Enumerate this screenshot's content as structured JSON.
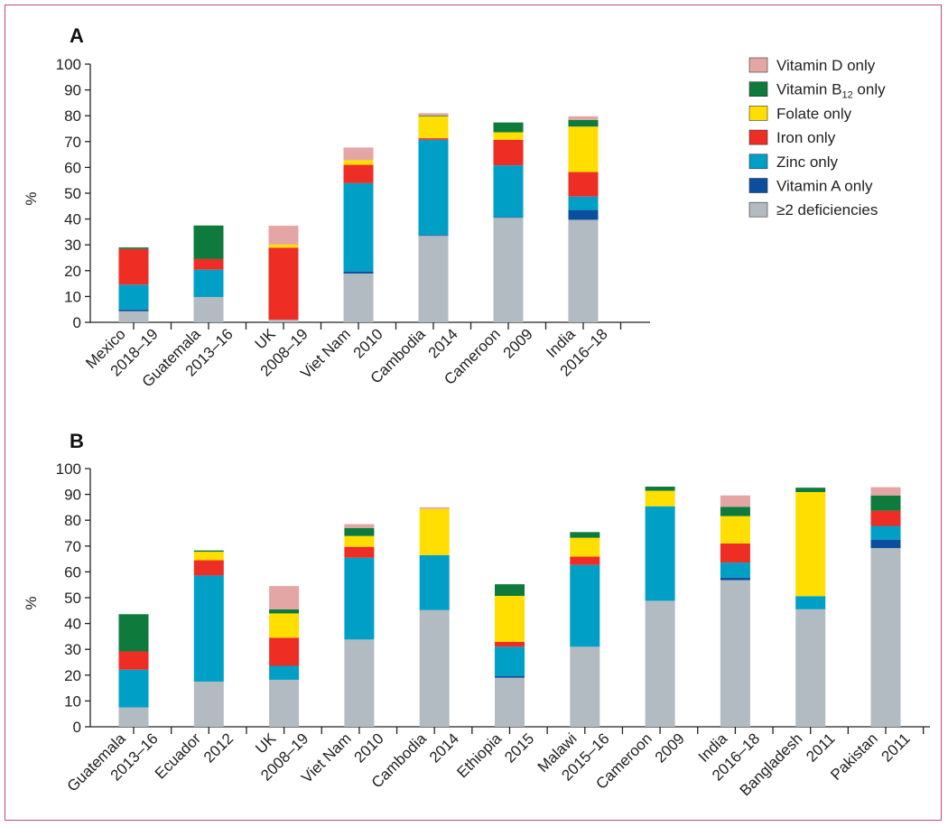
{
  "legend": [
    {
      "label": "Vitamin D only",
      "base": "Vitamin D only",
      "sub": "",
      "rest": "",
      "color": "#e4a6a4"
    },
    {
      "label": "Vitamin B12 only",
      "base": "Vitamin B",
      "sub": "12",
      "rest": " only",
      "color": "#0e7a3c"
    },
    {
      "label": "Folate only",
      "base": "Folate only",
      "sub": "",
      "rest": "",
      "color": "#ffde00"
    },
    {
      "label": "Iron only",
      "base": "Iron only",
      "sub": "",
      "rest": "",
      "color": "#ee2d24"
    },
    {
      "label": "Zinc only",
      "base": "Zinc only",
      "sub": "",
      "rest": "",
      "color": "#00a0c6"
    },
    {
      "label": "Vitamin A only",
      "base": "Vitamin A only",
      "sub": "",
      "rest": "",
      "color": "#0a4f9e"
    },
    {
      "label": "≥2 deficiencies",
      "base": "≥2 deficiencies",
      "sub": "",
      "rest": "",
      "color": "#b3bbc2"
    }
  ],
  "chart_data": [
    {
      "type": "bar",
      "stacked": true,
      "panel": "A",
      "ylabel": "%",
      "ylim": [
        0,
        100
      ],
      "yticks": [
        0,
        10,
        20,
        30,
        40,
        50,
        60,
        70,
        80,
        90,
        100
      ],
      "categories": [
        {
          "country": "Mexico",
          "year": "2018–19"
        },
        {
          "country": "Guatemala",
          "year": "2013–16"
        },
        {
          "country": "UK",
          "year": "2008–19"
        },
        {
          "country": "Viet Nam",
          "year": "2010"
        },
        {
          "country": "Cambodia",
          "year": "2014"
        },
        {
          "country": "Cameroon",
          "year": "2009"
        },
        {
          "country": "India",
          "year": "2016–18"
        }
      ],
      "series": [
        {
          "name": "≥2 deficiencies",
          "values": [
            4.3,
            9.8,
            1.0,
            18.9,
            33.5,
            40.5,
            39.7
          ]
        },
        {
          "name": "Vitamin A only",
          "values": [
            0.7,
            0,
            0,
            0.8,
            0.3,
            0.2,
            3.8
          ]
        },
        {
          "name": "Zinc only",
          "values": [
            9.6,
            10.6,
            0,
            34.2,
            36.9,
            20.1,
            5.2
          ]
        },
        {
          "name": "Iron only",
          "values": [
            13.8,
            4.1,
            27.9,
            7.1,
            0.6,
            9.9,
            9.5
          ]
        },
        {
          "name": "Folate only",
          "values": [
            0,
            0,
            1.2,
            1.8,
            8.5,
            2.9,
            17.6
          ]
        },
        {
          "name": "Vitamin B12 only",
          "values": [
            0.6,
            13.0,
            0,
            0,
            0.3,
            3.8,
            2.6
          ]
        },
        {
          "name": "Vitamin D only",
          "values": [
            0,
            0,
            7.3,
            4.9,
            0.9,
            0,
            1.4
          ]
        }
      ]
    },
    {
      "type": "bar",
      "stacked": true,
      "panel": "B",
      "ylabel": "%",
      "ylim": [
        0,
        100
      ],
      "yticks": [
        0,
        10,
        20,
        30,
        40,
        50,
        60,
        70,
        80,
        90,
        100
      ],
      "categories": [
        {
          "country": "Guatemala",
          "year": "2013–16"
        },
        {
          "country": "Ecuador",
          "year": "2012"
        },
        {
          "country": "UK",
          "year": "2008–19"
        },
        {
          "country": "Viet Nam",
          "year": "2010"
        },
        {
          "country": "Cambodia",
          "year": "2014"
        },
        {
          "country": "Ethiopia",
          "year": "2015"
        },
        {
          "country": "Malawi",
          "year": "2015–16"
        },
        {
          "country": "Cameroon",
          "year": "2009"
        },
        {
          "country": "India",
          "year": "2016–18"
        },
        {
          "country": "Bangladesh",
          "year": "2011"
        },
        {
          "country": "Pakistan",
          "year": "2011"
        }
      ],
      "series": [
        {
          "name": "≥2 deficiencies",
          "values": [
            7.5,
            17.5,
            18.2,
            33.8,
            45.2,
            19.0,
            31.0,
            48.8,
            56.8,
            45.5,
            69.2
          ]
        },
        {
          "name": "Vitamin A only",
          "values": [
            0,
            0,
            0,
            0,
            0,
            0.7,
            0,
            0,
            1.0,
            0,
            3.3
          ]
        },
        {
          "name": "Zinc only",
          "values": [
            14.6,
            41.1,
            5.4,
            31.7,
            21.3,
            11.3,
            31.7,
            36.6,
            5.8,
            5.1,
            5.3
          ]
        },
        {
          "name": "Iron only",
          "values": [
            7.1,
            5.9,
            10.9,
            4.2,
            0,
            1.9,
            3.2,
            0,
            7.4,
            0,
            5.9
          ]
        },
        {
          "name": "Folate only",
          "values": [
            0,
            3.3,
            9.4,
            4.2,
            17.9,
            17.8,
            7.3,
            6.0,
            10.6,
            40.3,
            0
          ]
        },
        {
          "name": "Vitamin B12 only",
          "values": [
            14.4,
            0.5,
            1.6,
            3.1,
            0,
            4.5,
            2.2,
            1.6,
            3.6,
            1.7,
            5.9
          ]
        },
        {
          "name": "Vitamin D only",
          "values": [
            0,
            0,
            9.0,
            1.5,
            0.6,
            0,
            0,
            0,
            4.4,
            0,
            3.2
          ]
        }
      ]
    }
  ]
}
